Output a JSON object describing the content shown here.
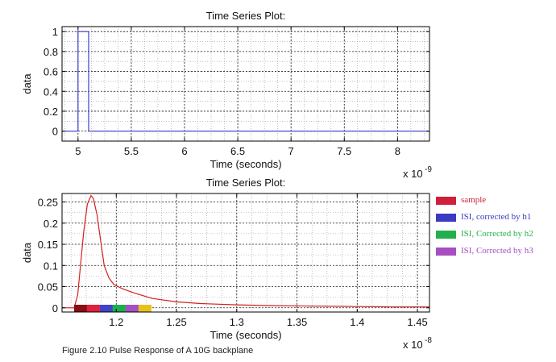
{
  "chart_data": [
    {
      "type": "line",
      "title": "Time Series Plot:",
      "xlabel": "Time (seconds)",
      "ylabel": "data",
      "x_exponent": "x 10",
      "x_exponent_power": "-9",
      "xlim": [
        4.85,
        8.3
      ],
      "ylim": [
        -0.1,
        1.05
      ],
      "x_ticks": [
        5,
        5.5,
        6,
        6.5,
        7,
        7.5,
        8
      ],
      "x_tick_labels": [
        "5",
        "5.5",
        "6",
        "6.5",
        "7",
        "7.5",
        "8"
      ],
      "y_ticks": [
        0,
        0.2,
        0.4,
        0.6,
        0.8,
        1
      ],
      "y_tick_labels": [
        "0",
        "0.2",
        "0.4",
        "0.6",
        "0.8",
        "1"
      ],
      "grid": true,
      "series": [
        {
          "color": "#3b3bd6",
          "x": [
            4.85,
            5.0,
            5.0,
            5.1,
            5.1,
            8.3
          ],
          "y": [
            0,
            0,
            1,
            1,
            0,
            0
          ]
        }
      ]
    },
    {
      "type": "line",
      "title": "Time Series Plot:",
      "xlabel": "Time (seconds)",
      "ylabel": "data",
      "x_exponent": "x 10",
      "x_exponent_power": "-8",
      "xlim": [
        1.155,
        1.46
      ],
      "ylim": [
        -0.01,
        0.27
      ],
      "x_ticks": [
        1.2,
        1.25,
        1.3,
        1.35,
        1.4,
        1.45
      ],
      "x_tick_labels": [
        "1.2",
        "1.25",
        "1.3",
        "1.35",
        "1.4",
        "1.45"
      ],
      "y_ticks": [
        0,
        0.05,
        0.1,
        0.15,
        0.2,
        0.25
      ],
      "y_tick_labels": [
        "0",
        "0.05",
        "0.1",
        "0.15",
        "0.2",
        "0.25"
      ],
      "grid": true,
      "series": [
        {
          "color": "#d42020",
          "x": [
            1.155,
            1.165,
            1.168,
            1.17,
            1.173,
            1.176,
            1.179,
            1.181,
            1.184,
            1.187,
            1.19,
            1.194,
            1.198,
            1.205,
            1.215,
            1.23,
            1.25,
            1.27,
            1.3,
            1.33,
            1.36,
            1.4,
            1.43,
            1.46
          ],
          "y": [
            0,
            0,
            0.03,
            0.09,
            0.18,
            0.245,
            0.265,
            0.258,
            0.22,
            0.16,
            0.1,
            0.07,
            0.055,
            0.045,
            0.035,
            0.022,
            0.014,
            0.01,
            0.007,
            0.005,
            0.004,
            0.003,
            0.002,
            0.002
          ]
        }
      ],
      "marker_strip": {
        "x_start": 1.165,
        "segment_width": 0.0107,
        "colors": [
          "#8b0e10",
          "#e0203c",
          "#4242c8",
          "#1bb04c",
          "#a64fc0",
          "#e6c21a"
        ]
      }
    }
  ],
  "legend": {
    "items": [
      {
        "label": "sample",
        "color": "#cf1f3a",
        "text_color": "#cf1f3a"
      },
      {
        "label": "ISI, corrected by h1",
        "color": "#3a3ac2",
        "text_color": "#3a3ac2"
      },
      {
        "label": "ISI, Corrected by h2",
        "color": "#22b04a",
        "text_color": "#22b04a"
      },
      {
        "label": "ISI, Corrected by h3",
        "color": "#a64fc0",
        "text_color": "#a64fc0"
      }
    ]
  },
  "caption": "Figure 2.10 Pulse Response of A 10G backplane"
}
